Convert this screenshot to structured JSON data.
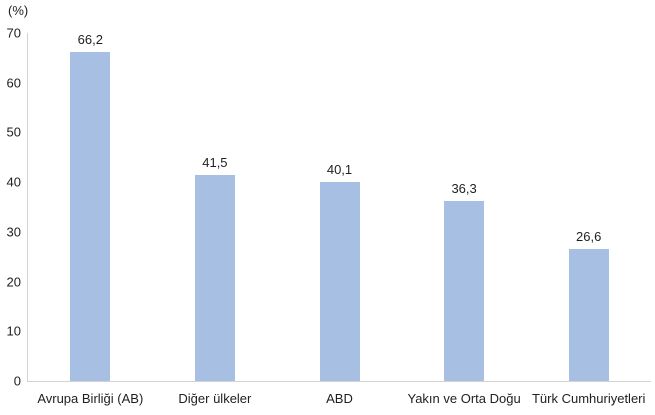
{
  "chart_data": {
    "type": "bar",
    "unit_label": "(%)",
    "categories": [
      "Avrupa Birliği (AB)",
      "Diğer ülkeler",
      "ABD",
      "Yakın ve Orta Doğu",
      "Türk Cumhuriyetleri"
    ],
    "values": [
      66.2,
      41.5,
      40.1,
      36.3,
      26.6
    ],
    "value_labels": [
      "66,2",
      "41,5",
      "40,1",
      "36,3",
      "26,6"
    ],
    "ylim": [
      0,
      70
    ],
    "yticks": [
      0,
      10,
      20,
      30,
      40,
      50,
      60,
      70
    ],
    "grid": false,
    "legend": "none",
    "bar_color": "#a6bfe2",
    "axis_color": "#d3d3d3",
    "text_color": "#1f1f1f"
  }
}
